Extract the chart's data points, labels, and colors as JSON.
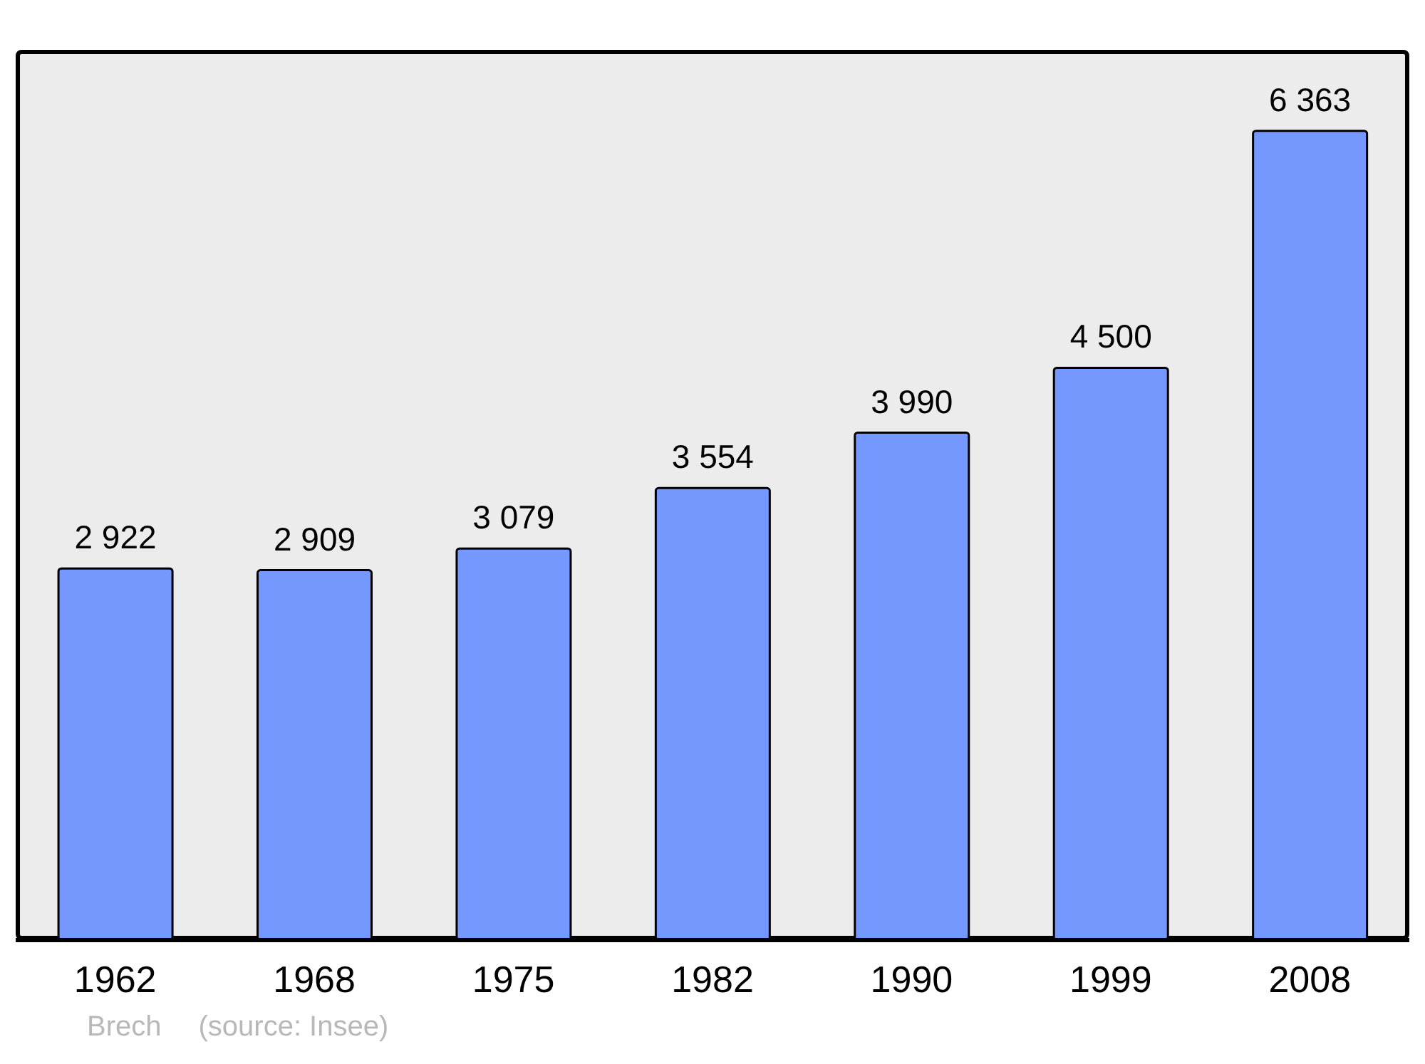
{
  "chart_data": {
    "type": "bar",
    "categories": [
      "1962",
      "1968",
      "1975",
      "1982",
      "1990",
      "1999",
      "2008"
    ],
    "values": [
      2922,
      2909,
      3079,
      3554,
      3990,
      4500,
      6363
    ],
    "color": "#7498ff",
    "ylim": [
      0,
      7000
    ],
    "data_labels": true,
    "tick_labels": "x",
    "annotations": [
      "Brech",
      "(source: Insee)"
    ]
  }
}
